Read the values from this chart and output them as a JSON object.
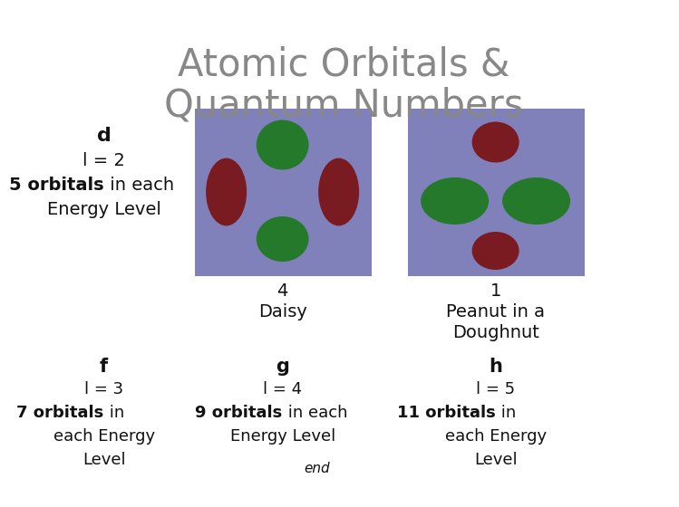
{
  "title_line1": "Atomic Orbitals &",
  "title_line2": "Quantum Numbers",
  "title_fontsize": 30,
  "title_color": "#888888",
  "bg_color": "#ffffff",
  "border_color": "#aaaaaa",
  "orbital_bg": "#8080bb",
  "text_color": "#111111",
  "green_color": "#1a7a1a",
  "red_color": "#7a1010",
  "top_left": {
    "line1": "d",
    "line2": "l = 2",
    "line3_bold": "5 orbitals",
    "line3_rest": " in each",
    "line4": "Energy Level"
  },
  "center_label1": "4",
  "center_label2": "Daisy",
  "right_label1": "1",
  "right_label2": "Peanut in a",
  "right_label3": "Doughnut",
  "col1": {
    "letter": "f",
    "eq": "l = 3",
    "orb_bold": "7 orbitals",
    "orb_rest": " in",
    "line4": "each Energy",
    "line5": "Level"
  },
  "col2": {
    "letter": "g",
    "eq": "l = 4",
    "orb_bold": "9 orbitals",
    "orb_rest": " in each",
    "line4": "Energy Level"
  },
  "col3": {
    "letter": "h",
    "eq": "l = 5",
    "orb_bold": "11 orbitals",
    "orb_rest": " in",
    "line4": "each Energy",
    "line5": "Level"
  },
  "end_label": "end"
}
